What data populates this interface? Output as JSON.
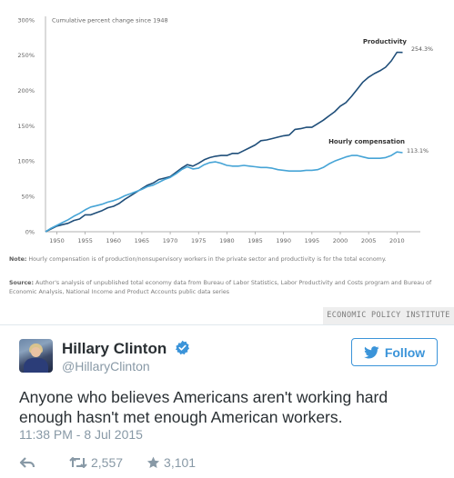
{
  "chart_data": {
    "type": "line",
    "subtitle": "Cumulative percent change since 1948",
    "y_ticks": [
      "0%",
      "50%",
      "100%",
      "150%",
      "200%",
      "250%",
      "300%"
    ],
    "ylim": [
      0,
      300
    ],
    "x_ticks": [
      "1950",
      "1955",
      "1960",
      "1965",
      "1970",
      "1975",
      "1980",
      "1985",
      "1990",
      "1995",
      "2000",
      "2005",
      "2010"
    ],
    "xlim": [
      1948,
      2013
    ],
    "grid": false,
    "colors": {
      "productivity": "#1f4e79",
      "compensation": "#46a4d6"
    },
    "series": [
      {
        "name": "Productivity",
        "end_label": "254.3%",
        "x": [
          1948,
          1949,
          1950,
          1951,
          1952,
          1953,
          1954,
          1955,
          1956,
          1957,
          1958,
          1959,
          1960,
          1961,
          1962,
          1963,
          1964,
          1965,
          1966,
          1967,
          1968,
          1969,
          1970,
          1971,
          1972,
          1973,
          1974,
          1975,
          1976,
          1977,
          1978,
          1979,
          1980,
          1981,
          1982,
          1983,
          1984,
          1985,
          1986,
          1987,
          1988,
          1989,
          1990,
          1991,
          1992,
          1993,
          1994,
          1995,
          1996,
          1997,
          1998,
          1999,
          2000,
          2001,
          2002,
          2003,
          2004,
          2005,
          2006,
          2007,
          2008,
          2009,
          2010,
          2011
        ],
        "values": [
          0,
          4,
          8,
          10,
          12,
          16,
          18,
          24,
          24,
          27,
          30,
          34,
          36,
          40,
          46,
          51,
          56,
          61,
          66,
          69,
          74,
          76,
          78,
          84,
          90,
          95,
          93,
          97,
          102,
          105,
          107,
          108,
          108,
          111,
          111,
          115,
          119,
          123,
          129,
          130,
          132,
          134,
          136,
          137,
          145,
          146,
          148,
          148,
          153,
          158,
          164,
          170,
          178,
          183,
          192,
          202,
          212,
          219,
          224,
          228,
          233,
          242,
          254.3,
          254
        ]
      },
      {
        "name": "Hourly compensation",
        "end_label": "113.1%",
        "x": [
          1948,
          1949,
          1950,
          1951,
          1952,
          1953,
          1954,
          1955,
          1956,
          1957,
          1958,
          1959,
          1960,
          1961,
          1962,
          1963,
          1964,
          1965,
          1966,
          1967,
          1968,
          1969,
          1970,
          1971,
          1972,
          1973,
          1974,
          1975,
          1976,
          1977,
          1978,
          1979,
          1980,
          1981,
          1982,
          1983,
          1984,
          1985,
          1986,
          1987,
          1988,
          1989,
          1990,
          1991,
          1992,
          1993,
          1994,
          1995,
          1996,
          1997,
          1998,
          1999,
          2000,
          2001,
          2002,
          2003,
          2004,
          2005,
          2006,
          2007,
          2008,
          2009,
          2010,
          2011
        ],
        "values": [
          0,
          5,
          9,
          13,
          17,
          22,
          26,
          31,
          35,
          37,
          39,
          42,
          44,
          47,
          51,
          54,
          57,
          60,
          64,
          66,
          70,
          74,
          77,
          82,
          88,
          92,
          89,
          90,
          95,
          98,
          99,
          97,
          94,
          93,
          93,
          94,
          93,
          92,
          91,
          91,
          90,
          88,
          87,
          86,
          86,
          86,
          87,
          87,
          88,
          91,
          96,
          100,
          103,
          106,
          108,
          108,
          106,
          104,
          104,
          104,
          105,
          108,
          113.1,
          112
        ]
      }
    ]
  },
  "chart_notes": {
    "note_label": "Note:",
    "note_text": "Hourly compensation is of production/nonsupervisory workers in the private sector and productivity is for the total economy.",
    "source_label": "Source:",
    "source_text": "Author's analysis of unpublished total economy data from Bureau of Labor Statistics, Labor Productivity and Costs program and Bureau of Economic Analysis, National Income and Product Accounts public data series",
    "badge": "ECONOMIC POLICY INSTITUTE"
  },
  "tweet": {
    "display_name": "Hillary Clinton",
    "handle": "@HillaryClinton",
    "follow_label": "Follow",
    "text": "Anyone who believes Americans aren't working hard enough hasn't met enough American workers.",
    "timestamp": "11:38 PM - 8 Jul 2015",
    "retweets": "2,557",
    "favorites": "3,101",
    "icons": {
      "verified": "verified-badge-icon",
      "follow": "twitter-bird-icon",
      "reply": "reply-icon",
      "retweet": "retweet-icon",
      "favorite": "star-icon"
    },
    "accent": "#3b94d9"
  }
}
